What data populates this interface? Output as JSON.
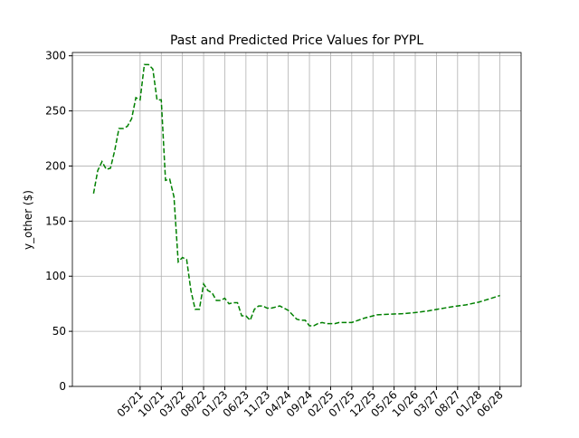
{
  "chart_data": {
    "type": "line",
    "title": "Past and Predicted Price Values for PYPL",
    "y_label": "y_other ($)",
    "x": [
      "06/20",
      "07/20",
      "08/20",
      "09/20",
      "10/20",
      "11/20",
      "12/20",
      "01/21",
      "02/21",
      "03/21",
      "04/21",
      "05/21",
      "06/21",
      "07/21",
      "08/21",
      "09/21",
      "10/21",
      "11/21",
      "12/21",
      "01/22",
      "02/22",
      "03/22",
      "04/22",
      "05/22",
      "06/22",
      "07/22",
      "08/22",
      "09/22",
      "10/22",
      "11/22",
      "12/22",
      "01/23",
      "02/23",
      "03/23",
      "04/23",
      "05/23",
      "06/23",
      "07/23",
      "08/23",
      "09/23",
      "10/23",
      "11/23",
      "12/23",
      "01/24",
      "02/24",
      "03/24",
      "04/24",
      "05/24",
      "06/24",
      "07/24",
      "08/24",
      "09/24",
      "10/24",
      "11/24",
      "12/24",
      "01/25",
      "02/25",
      "03/25",
      "04/25",
      "05/25",
      "06/25",
      "07/25",
      "10/25",
      "01/26",
      "04/26",
      "07/26",
      "10/26",
      "01/27",
      "04/27",
      "07/27",
      "10/27",
      "01/28",
      "04/28",
      "06/28"
    ],
    "series": [
      {
        "name": "PYPL",
        "color": "#008000",
        "values": [
          175,
          196,
          204,
          197,
          198,
          214,
          234,
          234,
          236,
          243,
          262,
          260,
          292,
          292,
          288,
          260,
          260,
          187,
          188,
          172,
          113,
          117,
          115,
          87,
          70,
          70,
          93,
          87,
          85,
          78,
          78,
          80,
          75,
          76,
          76,
          64,
          64,
          60,
          70,
          73,
          73,
          71,
          71,
          72,
          73,
          71,
          69,
          65,
          61,
          60,
          60,
          55,
          55,
          57,
          58,
          57,
          57,
          57,
          58,
          58,
          58,
          58,
          62,
          65,
          65.5,
          66,
          67,
          68.5,
          70.5,
          72.5,
          74,
          76.5,
          80,
          82.5
        ]
      }
    ],
    "xlim": [
      "01/20",
      "11/28"
    ],
    "xticks": [
      "05/21",
      "10/21",
      "03/22",
      "08/22",
      "01/23",
      "06/23",
      "11/23",
      "04/24",
      "09/24",
      "02/25",
      "07/25",
      "12/25",
      "05/26",
      "10/26",
      "03/27",
      "08/27",
      "01/28",
      "06/28"
    ],
    "ylim": [
      0,
      303
    ],
    "yticks": [
      0,
      50,
      100,
      150,
      200,
      250,
      300
    ],
    "grid": true
  }
}
